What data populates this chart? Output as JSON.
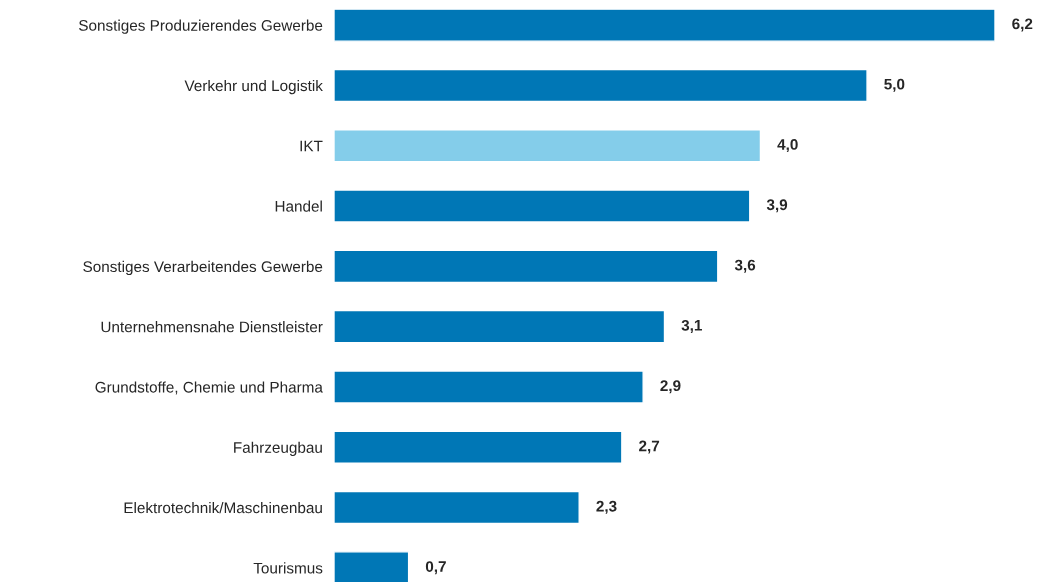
{
  "chart_data": {
    "type": "bar",
    "orientation": "horizontal",
    "categories": [
      "Sonstiges Produzierendes Gewerbe",
      "Verkehr und Logistik",
      "IKT",
      "Handel",
      "Sonstiges Verarbeitendes Gewerbe",
      "Unternehmensnahe Dienstleister",
      "Grundstoffe, Chemie und Pharma",
      "Fahrzeugbau",
      "Elektrotechnik/Maschinenbau",
      "Tourismus"
    ],
    "values": [
      6.2,
      5.0,
      4.0,
      3.9,
      3.6,
      3.1,
      2.9,
      2.7,
      2.3,
      0.7
    ],
    "value_labels": [
      "6,2",
      "5,0",
      "4,0",
      "3,9",
      "3,6",
      "3,1",
      "2,9",
      "2,7",
      "2,3",
      "0,7"
    ],
    "colors": [
      "#0077b6",
      "#0077b6",
      "#84cdea",
      "#0077b6",
      "#0077b6",
      "#0077b6",
      "#0077b6",
      "#0077b6",
      "#0077b6",
      "#0077b6"
    ],
    "grid": false,
    "legend": false
  }
}
